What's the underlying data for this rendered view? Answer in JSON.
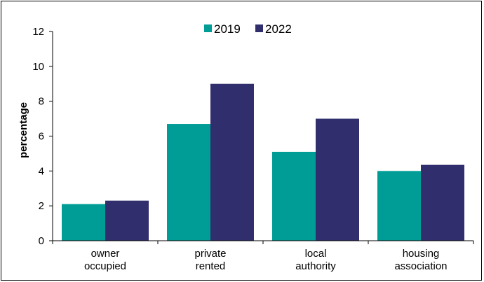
{
  "chart_data": {
    "type": "bar",
    "categories": [
      [
        "owner",
        "occupied"
      ],
      [
        "private",
        "rented"
      ],
      [
        "local",
        "authority"
      ],
      [
        "housing",
        "association"
      ]
    ],
    "series": [
      {
        "name": "2019",
        "values": [
          2.1,
          6.7,
          5.1,
          4.0
        ],
        "color": "#009c96"
      },
      {
        "name": "2022",
        "values": [
          2.3,
          9.0,
          7.0,
          4.35
        ],
        "color": "#312e6e"
      }
    ],
    "title": "",
    "xlabel": "",
    "ylabel": "percentage",
    "ylim": [
      0,
      12
    ],
    "yticks": [
      0,
      2,
      4,
      6,
      8,
      10,
      12
    ],
    "grid": false,
    "legend_position": "top-center"
  }
}
